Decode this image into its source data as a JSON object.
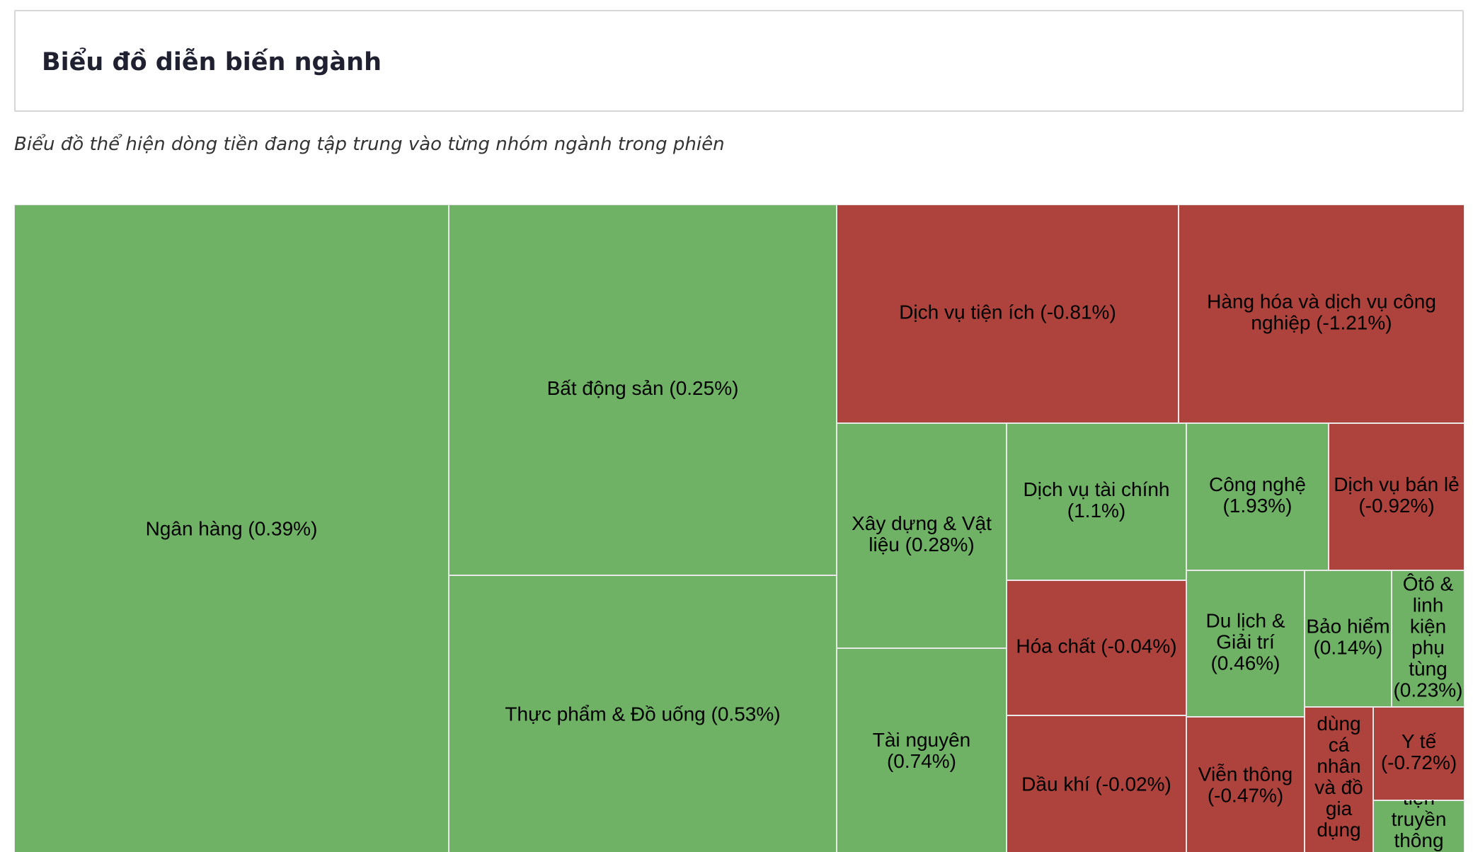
{
  "header": {
    "title": "Biểu đồ diễn biến ngành",
    "subtitle": "Biểu đồ thể hiện dòng tiền đang tập trung vào từng nhóm ngành trong phiên"
  },
  "colors": {
    "positive": "#6fb266",
    "negative": "#ad433c",
    "border": "#e8e8e8"
  },
  "chart_data": {
    "type": "treemap",
    "tiles": [
      {
        "name": "Ngân hàng",
        "change": 0.39,
        "label": "Ngân hàng (0.39%)"
      },
      {
        "name": "Bất động sản",
        "change": 0.25,
        "label": "Bất động sản (0.25%)"
      },
      {
        "name": "Thực phẩm & Đồ uống",
        "change": 0.53,
        "label": "Thực phẩm & Đồ uống (0.53%)"
      },
      {
        "name": "Dịch vụ tiện ích",
        "change": -0.81,
        "label": "Dịch vụ tiện ích (-0.81%)"
      },
      {
        "name": "Hàng hóa và dịch vụ công nghiệp",
        "change": -1.21,
        "label": "Hàng hóa và dịch vụ công nghiệp (-1.21%)"
      },
      {
        "name": "Xây dựng & Vật liệu",
        "change": 0.28,
        "label": "Xây dựng & Vật liệu (0.28%)"
      },
      {
        "name": "Tài nguyên",
        "change": 0.74,
        "label": "Tài nguyên (0.74%)"
      },
      {
        "name": "Dịch vụ tài chính",
        "change": 1.1,
        "label": "Dịch vụ tài chính (1.1%)"
      },
      {
        "name": "Hóa chất",
        "change": -0.04,
        "label": "Hóa chất (-0.04%)"
      },
      {
        "name": "Dầu khí",
        "change": -0.02,
        "label": "Dầu khí (-0.02%)"
      },
      {
        "name": "Công nghệ",
        "change": 1.93,
        "label": "Công nghệ (1.93%)"
      },
      {
        "name": "Dịch vụ bán lẻ",
        "change": -0.92,
        "label": "Dịch vụ bán lẻ (-0.92%)"
      },
      {
        "name": "Du lịch & Giải trí",
        "change": 0.46,
        "label": "Du lịch & Giải trí (0.46%)"
      },
      {
        "name": "Bảo hiểm",
        "change": 0.14,
        "label": "Bảo hiểm (0.14%)"
      },
      {
        "name": "Ôtô & linh kiện phụ tùng",
        "change": 0.23,
        "label": "Ôtô & linh kiện phụ tùng (0.23%)"
      },
      {
        "name": "Viễn thông",
        "change": -0.47,
        "label": "Viễn thông (-0.47%)"
      },
      {
        "name": "dùng cá nhân và đồ gia dụng",
        "change": null,
        "label": "dùng cá nhân và đồ gia dụng"
      },
      {
        "name": "Y tế",
        "change": -0.72,
        "label": "Y tế (-0.72%)"
      },
      {
        "name": "tiện truyền thông",
        "change": null,
        "label": "tiện truyền thông"
      }
    ]
  },
  "tile_lines": {
    "Ngân hàng": [
      "Ngân hàng (0.39%)"
    ],
    "Bất động sản": [
      "Bất động sản (0.25%)"
    ],
    "Thực phẩm & Đồ uống": [
      "Thực phẩm & Đồ uống (0.53%)"
    ],
    "Dịch vụ tiện ích": [
      "Dịch vụ tiện ích (-0.81%)"
    ],
    "Hàng hóa và dịch vụ công nghiệp": [
      "Hàng hóa và dịch vụ công",
      "nghiệp (-1.21%)"
    ],
    "Xây dựng & Vật liệu": [
      "Xây dựng & Vật",
      "liệu (0.28%)"
    ],
    "Tài nguyên": [
      "Tài nguyên",
      "(0.74%)"
    ],
    "Dịch vụ tài chính": [
      "Dịch vụ tài chính",
      "(1.1%)"
    ],
    "Hóa chất": [
      "Hóa chất (-0.04%)"
    ],
    "Dầu khí": [
      "Dầu khí (-0.02%)"
    ],
    "Công nghệ": [
      "Công nghệ",
      "(1.93%)"
    ],
    "Dịch vụ bán lẻ": [
      "Dịch vụ bán lẻ",
      "(-0.92%)"
    ],
    "Du lịch & Giải trí": [
      "Du lịch &",
      "Giải trí",
      "(0.46%)"
    ],
    "Bảo hiểm": [
      "Bảo hiểm",
      "(0.14%)"
    ],
    "Ôtô & linh kiện phụ tùng": [
      "Ôtô &",
      "linh",
      "kiện",
      "phụ",
      "tùng",
      "(0.23%)"
    ],
    "Viễn thông": [
      "Viễn thông",
      "(-0.47%)"
    ],
    "dùng cá nhân và đồ gia dụng": [
      "dùng",
      "cá",
      "nhân",
      "và đồ",
      "gia",
      "dụng"
    ],
    "Y tế": [
      "Y tế",
      "(-0.72%)"
    ],
    "tiện truyền thông": [
      "tiện",
      "truyền",
      "thông"
    ]
  }
}
